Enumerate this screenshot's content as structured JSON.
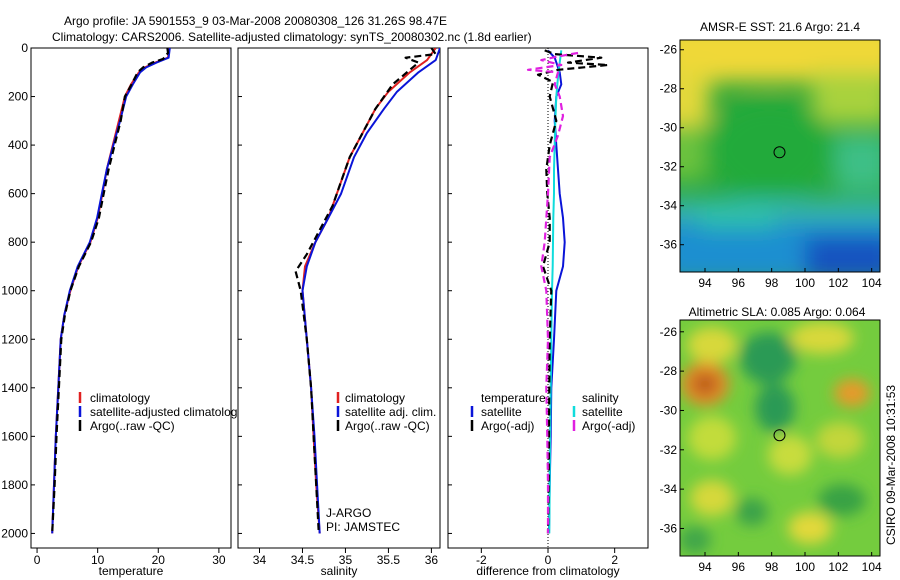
{
  "header": {
    "title_line1": "Argo profile: JA 5901553_9 03-Mar-2008 20080308_126 31.26S 98.47E",
    "title_line2": "Climatology: CARS2006. Satellite-adjusted climatology: synTS_20080302.nc (1.8d earlier)"
  },
  "side_label": "CSIRO 09-Mar-2008 10:31:53",
  "colors": {
    "red": "#e02020",
    "blue": "#0a14d8",
    "black": "#000000",
    "cyan": "#10dcdc",
    "magenta": "#e020e0"
  },
  "chart_data": [
    {
      "type": "line",
      "id": "temperature",
      "xlabel": "temperature",
      "xlim": [
        -1,
        32
      ],
      "xticks": [
        0,
        10,
        20,
        30
      ],
      "ylim": [
        0,
        2060
      ],
      "yticks": [
        0,
        200,
        400,
        600,
        800,
        1000,
        1200,
        1400,
        1600,
        1800,
        2000
      ],
      "legend": {
        "position": "lower-right",
        "entries": [
          "climatology",
          "satellite-adjusted climatology",
          "Argo(..raw -QC)"
        ]
      },
      "series": [
        {
          "name": "climatology",
          "color": "red",
          "style": "solid",
          "points": [
            [
              21.8,
              0
            ],
            [
              21.6,
              40
            ],
            [
              19.5,
              60
            ],
            [
              17.8,
              80
            ],
            [
              16.8,
              100
            ],
            [
              15.5,
              150
            ],
            [
              14.5,
              200
            ],
            [
              13.5,
              300
            ],
            [
              12.5,
              400
            ],
            [
              11.5,
              500
            ],
            [
              10.8,
              600
            ],
            [
              10,
              700
            ],
            [
              8.8,
              800
            ],
            [
              6.8,
              900
            ],
            [
              5.5,
              1000
            ],
            [
              4.5,
              1100
            ],
            [
              3.9,
              1200
            ],
            [
              3.5,
              1400
            ],
            [
              3.1,
              1600
            ],
            [
              2.8,
              1800
            ],
            [
              2.5,
              2000
            ]
          ]
        },
        {
          "name": "satellite-adjusted climatology",
          "color": "blue",
          "style": "solid",
          "points": [
            [
              21.9,
              0
            ],
            [
              21.7,
              40
            ],
            [
              19.7,
              60
            ],
            [
              18,
              80
            ],
            [
              17,
              100
            ],
            [
              15.8,
              150
            ],
            [
              14.7,
              200
            ],
            [
              13.7,
              300
            ],
            [
              12.6,
              400
            ],
            [
              11.5,
              500
            ],
            [
              10.7,
              600
            ],
            [
              9.9,
              700
            ],
            [
              8.7,
              800
            ],
            [
              6.7,
              900
            ],
            [
              5.4,
              1000
            ],
            [
              4.5,
              1100
            ],
            [
              3.9,
              1200
            ],
            [
              3.5,
              1400
            ],
            [
              3.1,
              1600
            ],
            [
              2.8,
              1800
            ],
            [
              2.5,
              2000
            ]
          ]
        },
        {
          "name": "Argo(..raw -QC)",
          "color": "black",
          "style": "dashed",
          "points": [
            [
              21.5,
              0
            ],
            [
              21.6,
              20
            ],
            [
              20.8,
              45
            ],
            [
              19,
              60
            ],
            [
              17.5,
              80
            ],
            [
              16.6,
              100
            ],
            [
              15.6,
              150
            ],
            [
              14.5,
              200
            ],
            [
              13.8,
              300
            ],
            [
              12.8,
              400
            ],
            [
              11.8,
              500
            ],
            [
              11,
              600
            ],
            [
              10.2,
              700
            ],
            [
              8.9,
              800
            ],
            [
              6.9,
              900
            ],
            [
              5.5,
              1000
            ],
            [
              4.6,
              1100
            ],
            [
              4,
              1200
            ],
            [
              3.6,
              1400
            ],
            [
              3.2,
              1600
            ],
            [
              2.9,
              1800
            ],
            [
              2.5,
              2000
            ]
          ]
        }
      ]
    },
    {
      "type": "line",
      "id": "salinity",
      "xlabel": "salinity",
      "xlim": [
        33.75,
        36.1
      ],
      "xticks": [
        34,
        34.5,
        35,
        35.5,
        36
      ],
      "ylim": [
        0,
        2060
      ],
      "legend": {
        "position": "lower-right",
        "entries": [
          "climatology",
          "satellite adj. clim.",
          "Argo(..raw -QC)"
        ]
      },
      "annotations": [
        "J-ARGO",
        "PI: JAMSTEC"
      ],
      "series": [
        {
          "name": "climatology",
          "color": "red",
          "style": "solid",
          "points": [
            [
              36.05,
              0
            ],
            [
              35.95,
              50
            ],
            [
              35.75,
              100
            ],
            [
              35.5,
              180
            ],
            [
              35.35,
              250
            ],
            [
              35.2,
              350
            ],
            [
              35.05,
              450
            ],
            [
              34.9,
              600
            ],
            [
              34.8,
              700
            ],
            [
              34.65,
              800
            ],
            [
              34.53,
              900
            ],
            [
              34.5,
              1000
            ],
            [
              34.55,
              1200
            ],
            [
              34.6,
              1400
            ],
            [
              34.63,
              1600
            ],
            [
              34.66,
              1800
            ],
            [
              34.7,
              2000
            ]
          ]
        },
        {
          "name": "satellite adj. clim.",
          "color": "blue",
          "style": "solid",
          "points": [
            [
              36.1,
              0
            ],
            [
              36.05,
              50
            ],
            [
              35.85,
              100
            ],
            [
              35.6,
              180
            ],
            [
              35.45,
              250
            ],
            [
              35.25,
              350
            ],
            [
              35.1,
              450
            ],
            [
              34.95,
              600
            ],
            [
              34.8,
              700
            ],
            [
              34.65,
              800
            ],
            [
              34.55,
              900
            ],
            [
              34.5,
              1000
            ],
            [
              34.55,
              1200
            ],
            [
              34.6,
              1400
            ],
            [
              34.64,
              1600
            ],
            [
              34.67,
              1800
            ],
            [
              34.7,
              2000
            ]
          ]
        },
        {
          "name": "Argo(..raw -QC)",
          "color": "black",
          "style": "dashed",
          "points": [
            [
              36,
              0
            ],
            [
              36.05,
              25
            ],
            [
              35.7,
              40
            ],
            [
              35.85,
              60
            ],
            [
              35.75,
              90
            ],
            [
              35.55,
              150
            ],
            [
              35.35,
              250
            ],
            [
              35.2,
              350
            ],
            [
              35.05,
              450
            ],
            [
              34.95,
              550
            ],
            [
              34.85,
              650
            ],
            [
              34.7,
              750
            ],
            [
              34.55,
              850
            ],
            [
              34.42,
              920
            ],
            [
              34.48,
              1000
            ],
            [
              34.55,
              1200
            ],
            [
              34.6,
              1400
            ],
            [
              34.63,
              1600
            ],
            [
              34.66,
              1800
            ],
            [
              34.69,
              2000
            ]
          ]
        }
      ]
    },
    {
      "type": "line",
      "id": "difference",
      "xlabel": "difference from climatology",
      "xlim": [
        -3,
        3
      ],
      "xticks": [
        -2,
        0,
        2
      ],
      "ylim": [
        0,
        2060
      ],
      "legend": {
        "position": "lower-right",
        "group_titles": [
          "temperature",
          "salinity"
        ],
        "entries": [
          "satellite",
          "Argo(-adj)",
          "satellite",
          "Argo(-adj)"
        ]
      },
      "series": [
        {
          "name": "temperature satellite",
          "color": "blue",
          "style": "solid",
          "points": [
            [
              0,
              10
            ],
            [
              0.2,
              40
            ],
            [
              0.3,
              80
            ],
            [
              0.35,
              100
            ],
            [
              0.4,
              150
            ],
            [
              0.25,
              200
            ],
            [
              0.2,
              300
            ],
            [
              0.25,
              400
            ],
            [
              0.3,
              500
            ],
            [
              0.35,
              600
            ],
            [
              0.45,
              700
            ],
            [
              0.5,
              800
            ],
            [
              0.45,
              900
            ],
            [
              0.25,
              1000
            ],
            [
              0.18,
              1200
            ],
            [
              0.1,
              1400
            ],
            [
              0.08,
              1600
            ],
            [
              0.05,
              1800
            ],
            [
              0.03,
              2000
            ]
          ]
        },
        {
          "name": "salinity satellite",
          "color": "cyan",
          "style": "solid",
          "points": [
            [
              0.4,
              10
            ],
            [
              0.35,
              60
            ],
            [
              0.3,
              120
            ],
            [
              0.25,
              200
            ],
            [
              0.22,
              300
            ],
            [
              0.2,
              400
            ],
            [
              0.18,
              500
            ],
            [
              0.18,
              600
            ],
            [
              0.16,
              700
            ],
            [
              0.15,
              800
            ],
            [
              0.14,
              900
            ],
            [
              0.12,
              1000
            ],
            [
              0.1,
              1200
            ],
            [
              0.08,
              1400
            ],
            [
              0.06,
              1600
            ],
            [
              0.05,
              1800
            ],
            [
              0.04,
              2000
            ]
          ]
        },
        {
          "name": "temperature Argo(-adj)",
          "color": "black",
          "style": "dashed",
          "points": [
            [
              -0.1,
              10
            ],
            [
              0.2,
              25
            ],
            [
              1.6,
              40
            ],
            [
              0.6,
              60
            ],
            [
              1.8,
              70
            ],
            [
              0.3,
              90
            ],
            [
              -0.3,
              110
            ],
            [
              0.15,
              140
            ],
            [
              0.05,
              200
            ],
            [
              0.25,
              300
            ],
            [
              0.05,
              400
            ],
            [
              -0.05,
              500
            ],
            [
              -0.02,
              600
            ],
            [
              0.05,
              700
            ],
            [
              0.05,
              800
            ],
            [
              -0.15,
              900
            ],
            [
              0.1,
              1000
            ],
            [
              0.05,
              1200
            ],
            [
              0.04,
              1400
            ],
            [
              0.03,
              1600
            ],
            [
              0.02,
              1800
            ],
            [
              0,
              2000
            ]
          ]
        },
        {
          "name": "salinity Argo(-adj)",
          "color": "magenta",
          "style": "dashed",
          "points": [
            [
              0.9,
              20
            ],
            [
              0.3,
              35
            ],
            [
              -0.2,
              50
            ],
            [
              0.4,
              70
            ],
            [
              -0.6,
              90
            ],
            [
              0.3,
              100
            ],
            [
              0.2,
              150
            ],
            [
              0.35,
              200
            ],
            [
              0.45,
              280
            ],
            [
              0.3,
              360
            ],
            [
              0.05,
              450
            ],
            [
              0,
              600
            ],
            [
              -0.1,
              800
            ],
            [
              -0.2,
              900
            ],
            [
              -0.05,
              1000
            ],
            [
              0,
              1200
            ],
            [
              -0.05,
              1400
            ],
            [
              -0.02,
              1600
            ],
            [
              0,
              1800
            ],
            [
              0,
              2000
            ]
          ]
        }
      ]
    },
    {
      "type": "heatmap",
      "id": "sst_map",
      "title": "AMSR-E SST: 21.6 Argo: 21.4",
      "xlim": [
        92.5,
        104.5
      ],
      "xticks": [
        94,
        96,
        98,
        100,
        102,
        104
      ],
      "ylim": [
        -37.4,
        -25.5
      ],
      "yticks": [
        -26,
        -28,
        -30,
        -32,
        -34,
        -36
      ],
      "marker": {
        "lon": 98.47,
        "lat": -31.26
      }
    },
    {
      "type": "heatmap",
      "id": "sla_map",
      "title": "Altimetric SLA: 0.085 Argo: 0.064",
      "xlim": [
        92.5,
        104.5
      ],
      "xticks": [
        94,
        96,
        98,
        100,
        102,
        104
      ],
      "ylim": [
        -37.4,
        -25.4
      ],
      "yticks": [
        -26,
        -28,
        -30,
        -32,
        -34,
        -36
      ],
      "marker": {
        "lon": 98.47,
        "lat": -31.26
      }
    }
  ]
}
